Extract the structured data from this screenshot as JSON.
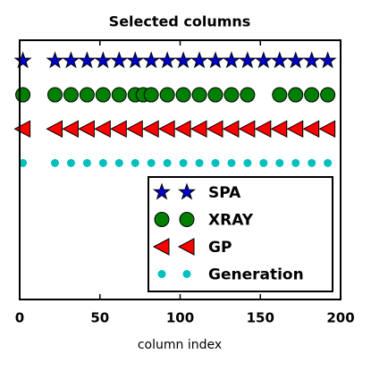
{
  "chart_data": {
    "type": "scatter",
    "title": "Selected columns",
    "x_label": "column index",
    "xlim": [
      0,
      200
    ],
    "xticks": [
      0,
      50,
      100,
      150,
      200
    ],
    "ylim": [
      -3,
      4.6
    ],
    "legend": "lower right",
    "series": [
      {
        "name": "SPA",
        "color": "#0000cc",
        "marker": "star",
        "x": [
          2,
          22,
          32,
          42,
          52,
          62,
          72,
          82,
          92,
          102,
          112,
          122,
          132,
          142,
          152,
          162,
          172,
          182,
          192
        ],
        "y": [
          4,
          4,
          4,
          4,
          4,
          4,
          4,
          4,
          4,
          4,
          4,
          4,
          4,
          4,
          4,
          4,
          4,
          4,
          4
        ]
      },
      {
        "name": "XRAY",
        "color": "#007f00",
        "marker": "circle",
        "x": [
          2,
          22,
          32,
          42,
          52,
          62,
          72,
          77,
          82,
          92,
          102,
          112,
          122,
          132,
          142,
          162,
          172,
          182,
          192
        ],
        "y": [
          3,
          3,
          3,
          3,
          3,
          3,
          3,
          3,
          3,
          3,
          3,
          3,
          3,
          3,
          3,
          3,
          3,
          3,
          3
        ]
      },
      {
        "name": "GP",
        "color": "#ff0000",
        "marker": "triangle-left",
        "x": [
          2,
          22,
          32,
          42,
          52,
          62,
          72,
          82,
          92,
          102,
          112,
          122,
          132,
          142,
          152,
          162,
          172,
          182,
          192
        ],
        "y": [
          2,
          2,
          2,
          2,
          2,
          2,
          2,
          2,
          2,
          2,
          2,
          2,
          2,
          2,
          2,
          2,
          2,
          2,
          2
        ]
      },
      {
        "name": "Generation",
        "color": "#00bfbf",
        "marker": "dot",
        "x": [
          2,
          22,
          32,
          42,
          52,
          62,
          72,
          82,
          92,
          102,
          112,
          122,
          132,
          142,
          152,
          162,
          172,
          182,
          192
        ],
        "y": [
          1,
          1,
          1,
          1,
          1,
          1,
          1,
          1,
          1,
          1,
          1,
          1,
          1,
          1,
          1,
          1,
          1,
          1,
          1
        ]
      }
    ]
  }
}
